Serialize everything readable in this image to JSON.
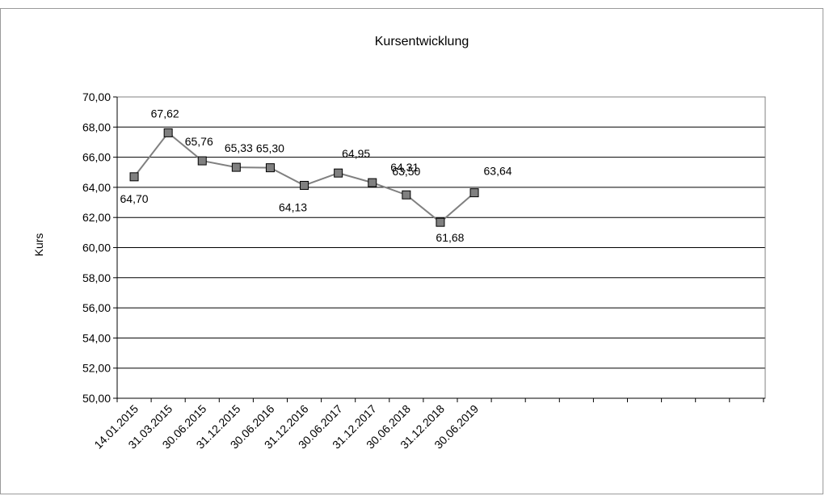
{
  "chart_data": {
    "type": "line",
    "title": "Kursentwicklung",
    "ylabel": "Kurs",
    "xlabel": "",
    "ylim": [
      50,
      70
    ],
    "y_ticks": [
      "70,00",
      "68,00",
      "66,00",
      "64,00",
      "62,00",
      "60,00",
      "58,00",
      "56,00",
      "54,00",
      "52,00",
      "50,00"
    ],
    "categories": [
      "14.01.2015",
      "31.03.2015",
      "30.06.2015",
      "31.12.2015",
      "30.06.2016",
      "31.12.2016",
      "30.06.2017",
      "31.12.2017",
      "30.06.2018",
      "31.12.2018",
      "30.06.2019"
    ],
    "values": [
      64.7,
      67.62,
      65.76,
      65.33,
      65.3,
      64.13,
      64.95,
      64.31,
      63.5,
      61.68,
      63.64
    ],
    "data_labels": [
      "64,70",
      "67,62",
      "65,76",
      "65,33",
      "65,30",
      "64,13",
      "64,95",
      "64,31",
      "63,50",
      "61,68",
      "63,64"
    ],
    "grid": true,
    "colors": {
      "line": "#808080",
      "marker_fill": "#808080",
      "marker_stroke": "#000000",
      "grid": "#000000"
    }
  }
}
